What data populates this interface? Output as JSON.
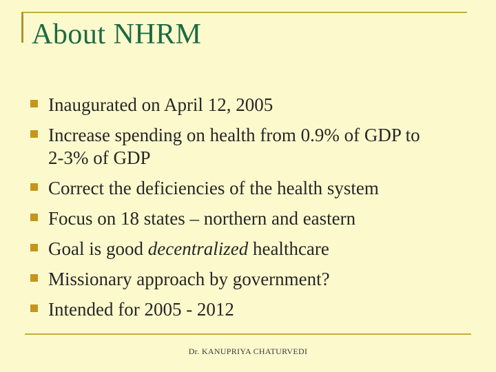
{
  "slide": {
    "title": "About NHRM",
    "bullets": [
      {
        "lines": [
          "Inaugurated on April 12, 2005"
        ]
      },
      {
        "lines": [
          "Increase spending on health from 0.9% of GDP to",
          "2-3% of GDP"
        ]
      },
      {
        "lines": [
          "Correct the deficiencies of the health system"
        ]
      },
      {
        "lines": [
          "Focus on 18 states – northern and eastern"
        ]
      },
      {
        "rich": {
          "pre": "Goal is good ",
          "italic": "decentralized",
          "post": " healthcare"
        }
      },
      {
        "lines": [
          "Missionary approach by government?"
        ]
      },
      {
        "lines": [
          "Intended for 2005 - 2012"
        ]
      }
    ],
    "footer": {
      "author": "Dr. KANUPRIYA CHATURVEDI"
    }
  },
  "colors": {
    "background": "#FCFACD",
    "title_green": "#1D6A42",
    "accent_gold": "#C5AC3E",
    "accent_gold_dark": "#B2912C",
    "bullet_gold": "#C6951C",
    "text": "#262626",
    "footer_text": "#3A3A3A"
  }
}
